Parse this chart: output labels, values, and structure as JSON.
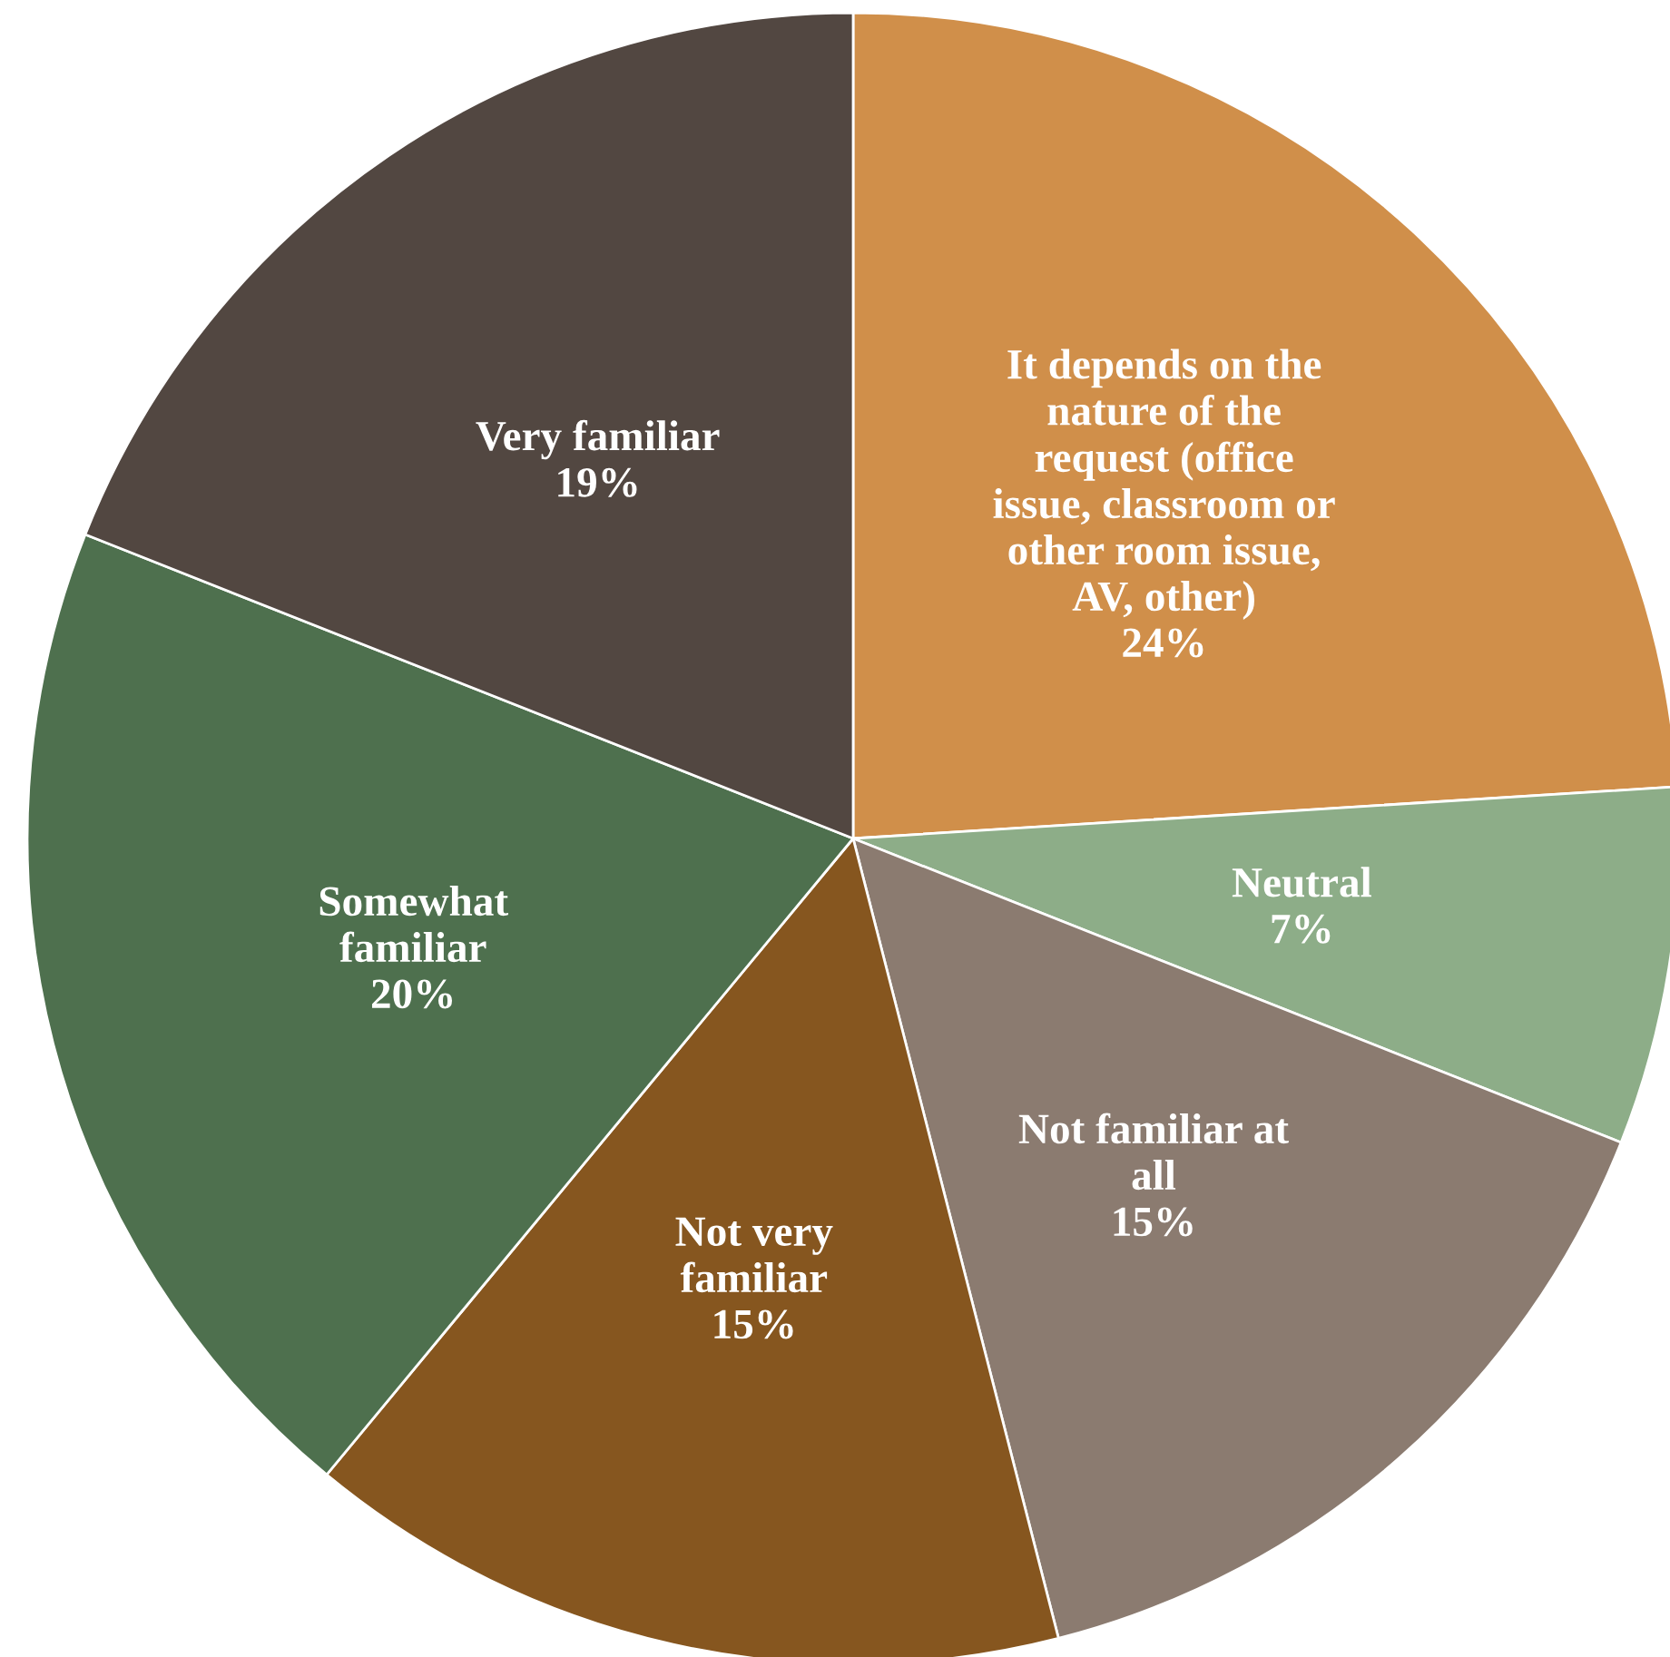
{
  "chart_data": {
    "type": "pie",
    "categories": [
      "It depends on the nature of the request (office issue, classroom or other room issue, AV, other)",
      "Neutral",
      "Not familiar at all",
      "Not very familiar",
      "Somewhat familiar",
      "Very familiar"
    ],
    "values": [
      24,
      7,
      15,
      15,
      20,
      19
    ],
    "value_labels": [
      "24%",
      "7%",
      "15%",
      "15%",
      "20%",
      "19%"
    ],
    "colors": [
      "#d08f4a",
      "#8dad88",
      "#8b7b70",
      "#86561f",
      "#4e704e",
      "#524741"
    ]
  }
}
